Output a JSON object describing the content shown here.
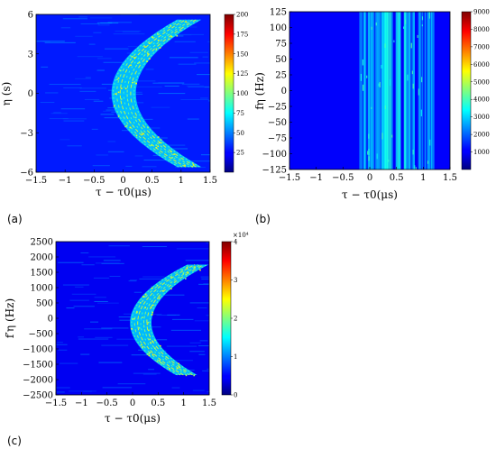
{
  "chart_data": [
    {
      "type": "heatmap",
      "panel_label": "(a)",
      "xlabel": "τ − τ0(μs)",
      "ylabel": "η (s)",
      "xlim": [
        -1.5,
        1.5
      ],
      "ylim": [
        -6,
        6
      ],
      "xticks": [
        "−1.5",
        "−1",
        "−0.5",
        "0",
        "0.5",
        "1",
        "1.5"
      ],
      "yticks": [
        "6",
        "3",
        "0",
        "−3",
        "−6"
      ],
      "colorbar": {
        "min": 0,
        "max": 200,
        "ticks": [
          "200",
          "175",
          "150",
          "125",
          "100",
          "75",
          "50",
          "25"
        ],
        "exponent": ""
      },
      "background_value": 30,
      "curve": {
        "shape": "parabola",
        "vertex_x": -0.2,
        "coef": 0.036,
        "domain": [
          -5.6,
          5.6
        ],
        "band_width": 0.42
      }
    },
    {
      "type": "heatmap",
      "panel_label": "(b)",
      "xlabel": "τ − τ0(μs)",
      "ylabel": "fη (Hz)",
      "xlim": [
        -1.5,
        1.5
      ],
      "ylim": [
        -125,
        125
      ],
      "xticks": [
        "−1.5",
        "−1",
        "−0.5",
        "0",
        "0.5",
        "1",
        "1.5"
      ],
      "yticks": [
        "125",
        "100",
        "75",
        "50",
        "25",
        "0",
        "−25",
        "−50",
        "−75",
        "−100",
        "−125"
      ],
      "colorbar": {
        "min": 0,
        "max": 9000,
        "ticks": [
          "9000",
          "8000",
          "7000",
          "6000",
          "5000",
          "4000",
          "3000",
          "2000",
          "1000"
        ],
        "exponent": ""
      },
      "background_value": 1100,
      "stripe_band": [
        -0.2,
        1.2
      ]
    },
    {
      "type": "heatmap",
      "panel_label": "(c)",
      "xlabel": "τ − τ0(μs)",
      "ylabel": "f′η (Hz)",
      "xlim": [
        -1.5,
        1.5
      ],
      "ylim": [
        -2500,
        2500
      ],
      "xticks": [
        "−1.5",
        "−1",
        "−0.5",
        "0",
        "0.5",
        "1",
        "1.5"
      ],
      "yticks": [
        "2500",
        "2000",
        "1500",
        "1000",
        "500",
        "0",
        "−500",
        "−1000",
        "−1500",
        "−2000",
        "−2500"
      ],
      "colorbar": {
        "min": 0,
        "max": 4,
        "ticks": [
          "4",
          "3",
          "2",
          "1",
          "0"
        ],
        "exponent": "×10⁴"
      },
      "background_value": 0.45,
      "curve": {
        "shape": "parabola",
        "vertex_x": -0.05,
        "coef": 3.1e-07,
        "vertex_y": -150,
        "domain": [
          -1850,
          1750
        ],
        "band_width": 0.42
      }
    }
  ]
}
